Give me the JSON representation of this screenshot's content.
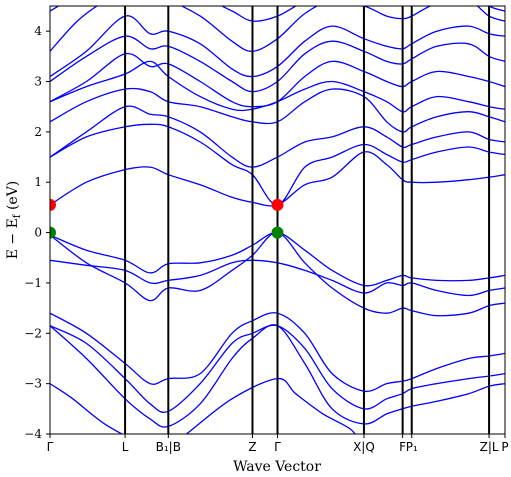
{
  "chart_data": {
    "type": "line",
    "xlabel": "Wave Vector",
    "ylabel": "E − Eₓ (eV)",
    "ylabel_main": "E  −  E",
    "ylabel_sub": "f",
    "ylabel_unit": " (eV)",
    "ylim": [
      -4,
      4.5
    ],
    "xlim": [
      0,
      100
    ],
    "y_ticks": [
      -4,
      -3,
      -2,
      -1,
      0,
      1,
      2,
      3,
      4
    ],
    "y_tick_labels": [
      "−4",
      "−3",
      "−2",
      "−1",
      "0",
      "1",
      "2",
      "3",
      "4"
    ],
    "kpoints": [
      {
        "label": "Γ",
        "x": 0,
        "line": false
      },
      {
        "label": "L",
        "x": 16.5,
        "line": true
      },
      {
        "label": "B₁|B",
        "x": 26.0,
        "line": true
      },
      {
        "label": "Z",
        "x": 44.5,
        "line": true
      },
      {
        "label": "Γ",
        "x": 50.0,
        "line": true
      },
      {
        "label": "X|Q",
        "x": 69.0,
        "line": true
      },
      {
        "label": "F",
        "x": 77.5,
        "line": true
      },
      {
        "label": "P₁",
        "x": 79.5,
        "line": true
      },
      {
        "label": "Z|L",
        "x": 96.5,
        "line": true
      },
      {
        "label": "P",
        "x": 100,
        "line": false
      }
    ],
    "series_color": "#0000ff",
    "series": [
      {
        "x": [
          0,
          8,
          16.5,
          22,
          26,
          33,
          40,
          44.5,
          50,
          56,
          62,
          69,
          74,
          77.5,
          79.5,
          85,
          92,
          96.5,
          100
        ],
        "y": [
          -0.05,
          -0.35,
          -0.55,
          -0.8,
          -0.62,
          -0.6,
          -0.45,
          -0.25,
          0.0,
          -0.35,
          -0.75,
          -1.05,
          -0.95,
          -0.85,
          -0.9,
          -0.95,
          -0.95,
          -0.9,
          -0.85
        ]
      },
      {
        "x": [
          0,
          8,
          16.5,
          22,
          26,
          33,
          40,
          44.5,
          50,
          56,
          62,
          69,
          74,
          77.5,
          79.5,
          85,
          92,
          96.5,
          100
        ],
        "y": [
          -0.05,
          -0.6,
          -1.0,
          -1.35,
          -1.1,
          -1.15,
          -0.75,
          -0.45,
          0.0,
          -0.6,
          -1.1,
          -1.5,
          -1.6,
          -1.5,
          -1.55,
          -1.65,
          -1.6,
          -1.45,
          -1.4
        ]
      },
      {
        "x": [
          0,
          8,
          16.5,
          22,
          26,
          33,
          40,
          44.5,
          50,
          56,
          62,
          69,
          74,
          77.5,
          79.5,
          85,
          92,
          96.5,
          100
        ],
        "y": [
          -0.55,
          -0.65,
          -0.75,
          -1.0,
          -0.95,
          -0.85,
          -0.6,
          -0.55,
          -0.6,
          -0.75,
          -0.95,
          -1.2,
          -1.0,
          -1.05,
          -1.0,
          -1.15,
          -1.25,
          -1.15,
          -1.1
        ]
      },
      {
        "x": [
          0,
          8,
          16.5,
          22,
          26,
          33,
          40,
          44.5,
          50,
          56,
          62,
          69,
          74,
          77.5,
          79.5,
          85,
          92,
          96.5,
          100
        ],
        "y": [
          -1.6,
          -2.0,
          -2.6,
          -3.0,
          -2.9,
          -2.8,
          -2.0,
          -1.75,
          -1.6,
          -2.0,
          -2.8,
          -3.15,
          -3.0,
          -2.95,
          -2.9,
          -2.7,
          -2.5,
          -2.45,
          -2.4
        ]
      },
      {
        "x": [
          0,
          8,
          16.5,
          22,
          26,
          33,
          40,
          44.5,
          50,
          56,
          62,
          69,
          74,
          77.5,
          79.5,
          85,
          92,
          96.5,
          100
        ],
        "y": [
          -1.85,
          -2.2,
          -2.9,
          -3.4,
          -3.55,
          -3.0,
          -2.2,
          -2.0,
          -1.85,
          -2.3,
          -3.1,
          -3.5,
          -3.3,
          -3.2,
          -3.1,
          -3.0,
          -2.9,
          -2.85,
          -2.8
        ]
      },
      {
        "x": [
          0,
          8,
          16.5,
          22,
          26,
          33,
          40,
          44.5,
          50,
          56,
          62,
          69,
          74,
          77.5,
          79.5,
          85,
          92,
          96.5,
          100
        ],
        "y": [
          -1.85,
          -2.5,
          -3.3,
          -3.7,
          -3.85,
          -3.4,
          -2.5,
          -2.1,
          -1.85,
          -2.6,
          -3.5,
          -3.8,
          -3.6,
          -3.5,
          -3.45,
          -3.35,
          -3.2,
          -3.05,
          -3.0
        ]
      },
      {
        "x": [
          0,
          5,
          12,
          20,
          24,
          30,
          40,
          50,
          54,
          60,
          66,
          69,
          73,
          77.5,
          79.5,
          85,
          92,
          96.5,
          100
        ],
        "y": [
          -3.0,
          -3.3,
          -3.8,
          -4.2,
          -4.4,
          -4.0,
          -3.3,
          -2.9,
          -3.2,
          -3.6,
          -3.9,
          -4.2,
          -4.1,
          -4.0,
          -4.1,
          -4.2,
          -4.3,
          -4.2,
          -4.1
        ]
      },
      {
        "x": [
          0,
          8,
          16.5,
          22,
          26,
          33,
          40,
          44.5,
          50,
          56,
          62,
          69,
          74,
          77.5,
          79.5,
          85,
          92,
          96.5,
          100
        ],
        "y": [
          0.55,
          1.0,
          1.25,
          1.3,
          1.15,
          0.95,
          0.7,
          0.6,
          0.55,
          0.95,
          1.1,
          1.6,
          1.35,
          1.05,
          1.0,
          1.0,
          1.05,
          1.1,
          1.15
        ]
      },
      {
        "x": [
          0,
          8,
          16.5,
          22,
          26,
          33,
          40,
          44.5,
          50,
          56,
          62,
          69,
          74,
          77.5,
          79.5,
          85,
          92,
          96.5,
          100
        ],
        "y": [
          1.5,
          1.9,
          2.1,
          2.15,
          2.1,
          1.8,
          1.35,
          1.15,
          0.55,
          1.3,
          1.5,
          1.75,
          1.55,
          1.4,
          1.45,
          1.6,
          1.7,
          1.6,
          1.55
        ]
      },
      {
        "x": [
          0,
          8,
          16.5,
          22,
          26,
          33,
          40,
          44.5,
          50,
          56,
          62,
          69,
          74,
          77.5,
          79.5,
          85,
          92,
          96.5,
          100
        ],
        "y": [
          1.5,
          2.0,
          2.5,
          2.35,
          2.3,
          2.0,
          1.5,
          1.3,
          1.5,
          1.8,
          1.9,
          2.1,
          1.9,
          1.7,
          1.75,
          1.9,
          2.0,
          1.85,
          1.8
        ]
      },
      {
        "x": [
          0,
          8,
          16.5,
          22,
          26,
          33,
          40,
          44.5,
          50,
          56,
          62,
          69,
          74,
          77.5,
          79.5,
          85,
          92,
          96.5,
          100
        ],
        "y": [
          2.2,
          2.6,
          2.85,
          2.8,
          2.6,
          2.5,
          2.3,
          2.2,
          2.2,
          2.6,
          2.85,
          2.7,
          2.2,
          2.0,
          2.1,
          2.3,
          2.4,
          2.3,
          2.2
        ]
      },
      {
        "x": [
          0,
          8,
          16.5,
          22,
          26,
          33,
          40,
          44.5,
          50,
          56,
          62,
          69,
          74,
          77.5,
          79.5,
          85,
          92,
          96.5,
          100
        ],
        "y": [
          2.6,
          2.9,
          3.15,
          3.4,
          3.1,
          2.7,
          2.45,
          2.45,
          2.6,
          2.85,
          3.0,
          2.8,
          2.6,
          2.4,
          2.5,
          2.7,
          2.6,
          2.5,
          2.45
        ]
      },
      {
        "x": [
          0,
          8,
          16.5,
          22,
          26,
          33,
          40,
          44.5,
          50,
          56,
          62,
          69,
          74,
          77.5,
          79.5,
          85,
          92,
          96.5,
          100
        ],
        "y": [
          2.6,
          3.0,
          3.55,
          3.3,
          3.35,
          3.0,
          2.6,
          2.5,
          2.6,
          3.1,
          3.4,
          3.2,
          3.0,
          2.9,
          3.0,
          3.2,
          3.1,
          3.0,
          2.9
        ]
      },
      {
        "x": [
          0,
          8,
          16.5,
          22,
          26,
          33,
          40,
          44.5,
          50,
          56,
          62,
          69,
          74,
          77.5,
          79.5,
          85,
          92,
          96.5,
          100
        ],
        "y": [
          3.0,
          3.5,
          3.9,
          3.65,
          3.7,
          3.4,
          3.0,
          2.8,
          3.0,
          3.55,
          3.8,
          3.6,
          3.4,
          3.35,
          3.45,
          3.7,
          3.75,
          3.5,
          3.4
        ]
      },
      {
        "x": [
          0,
          8,
          16.5,
          22,
          26,
          33,
          40,
          44.5,
          50,
          56,
          62,
          69,
          74,
          77.5,
          79.5,
          85,
          92,
          96.5,
          100
        ],
        "y": [
          3.1,
          3.6,
          4.3,
          3.95,
          4.0,
          3.75,
          3.25,
          3.1,
          3.3,
          3.8,
          4.1,
          3.85,
          3.7,
          3.65,
          3.75,
          4.0,
          4.1,
          3.95,
          3.9
        ]
      },
      {
        "x": [
          0,
          6,
          12,
          16.5,
          22,
          26,
          33,
          40,
          44.5,
          50,
          56,
          62,
          69,
          74,
          77.5,
          79.5,
          85,
          92,
          96.5,
          100
        ],
        "y": [
          3.6,
          4.2,
          4.6,
          4.8,
          4.55,
          4.6,
          4.3,
          3.8,
          3.6,
          3.85,
          4.35,
          4.6,
          4.5,
          4.3,
          4.25,
          4.3,
          4.55,
          4.6,
          4.3,
          4.2
        ]
      },
      {
        "x": [
          0,
          8,
          16.5,
          26,
          33,
          40,
          44.5,
          50,
          56,
          62,
          69,
          74,
          77.5,
          79.5,
          85,
          92,
          96.5,
          100
        ],
        "y": [
          4.4,
          4.8,
          5.0,
          4.9,
          4.7,
          4.4,
          4.2,
          4.3,
          4.6,
          4.8,
          4.7,
          4.6,
          4.5,
          4.6,
          4.7,
          4.8,
          4.5,
          4.4
        ]
      }
    ],
    "markers": [
      {
        "x": 0,
        "y": 0.55,
        "color": "#ff0000"
      },
      {
        "x": 0,
        "y": 0.0,
        "color": "#008000"
      },
      {
        "x": 50,
        "y": 0.55,
        "color": "#ff0000"
      },
      {
        "x": 50,
        "y": 0.0,
        "color": "#008000"
      }
    ]
  }
}
